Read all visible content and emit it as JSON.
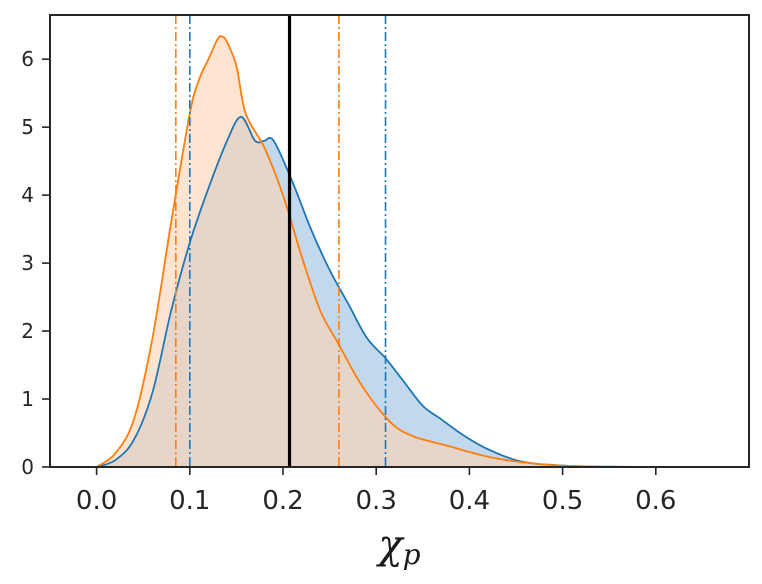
{
  "chart_data": {
    "type": "area",
    "title": "",
    "xlabel": "χp",
    "xlabel_main": "χ",
    "xlabel_sub": "p",
    "ylabel": "",
    "xlim": [
      -0.05,
      0.7
    ],
    "ylim": [
      0,
      6.65
    ],
    "xticks": [
      0.0,
      0.1,
      0.2,
      0.3,
      0.4,
      0.5,
      0.6
    ],
    "xtick_labels": [
      "0.0",
      "0.1",
      "0.2",
      "0.3",
      "0.4",
      "0.5",
      "0.6"
    ],
    "yticks": [
      0,
      1,
      2,
      3,
      4,
      5,
      6
    ],
    "ytick_labels": [
      "0",
      "1",
      "2",
      "3",
      "4",
      "5",
      "6"
    ],
    "grid": false,
    "legend": "none",
    "series": [
      {
        "color": "#1f77b4",
        "fill_color": "#aecbe6",
        "x": [
          0.0,
          0.02,
          0.04,
          0.06,
          0.08,
          0.1,
          0.12,
          0.14,
          0.155,
          0.17,
          0.18,
          0.19,
          0.21,
          0.23,
          0.25,
          0.27,
          0.29,
          0.31,
          0.33,
          0.35,
          0.37,
          0.39,
          0.41,
          0.43,
          0.45,
          0.47,
          0.49,
          0.52,
          0.55,
          0.6,
          0.67
        ],
        "y": [
          0.0,
          0.1,
          0.4,
          1.1,
          2.3,
          3.3,
          4.1,
          4.8,
          5.15,
          4.8,
          4.8,
          4.8,
          4.2,
          3.5,
          2.9,
          2.4,
          1.9,
          1.6,
          1.25,
          0.9,
          0.7,
          0.5,
          0.33,
          0.2,
          0.1,
          0.05,
          0.03,
          0.01,
          0.005,
          0.0,
          0.0
        ]
      },
      {
        "color": "#ff7f0e",
        "fill_color": "#ffd3b2",
        "x": [
          0.0,
          0.02,
          0.04,
          0.06,
          0.08,
          0.1,
          0.11,
          0.12,
          0.13,
          0.135,
          0.14,
          0.15,
          0.16,
          0.18,
          0.2,
          0.22,
          0.24,
          0.26,
          0.28,
          0.3,
          0.32,
          0.34,
          0.36,
          0.38,
          0.4,
          0.42,
          0.44,
          0.47,
          0.5,
          0.55,
          0.6
        ],
        "y": [
          0.0,
          0.2,
          0.7,
          1.9,
          3.6,
          5.2,
          5.7,
          6.0,
          6.3,
          6.33,
          6.25,
          5.9,
          5.2,
          4.7,
          4.0,
          3.1,
          2.3,
          1.8,
          1.3,
          0.9,
          0.6,
          0.45,
          0.37,
          0.3,
          0.22,
          0.15,
          0.1,
          0.05,
          0.02,
          0.0,
          0.0
        ]
      }
    ],
    "vertical_lines": [
      {
        "x": 0.085,
        "color": "#ff7f0e",
        "style": "dashdot"
      },
      {
        "x": 0.1,
        "color": "#1f77b4",
        "style": "dashdot"
      },
      {
        "x": 0.207,
        "color": "#000000",
        "style": "solid"
      },
      {
        "x": 0.26,
        "color": "#ff7f0e",
        "style": "dashdot"
      },
      {
        "x": 0.31,
        "color": "#1f77b4",
        "style": "dashdot"
      }
    ]
  }
}
